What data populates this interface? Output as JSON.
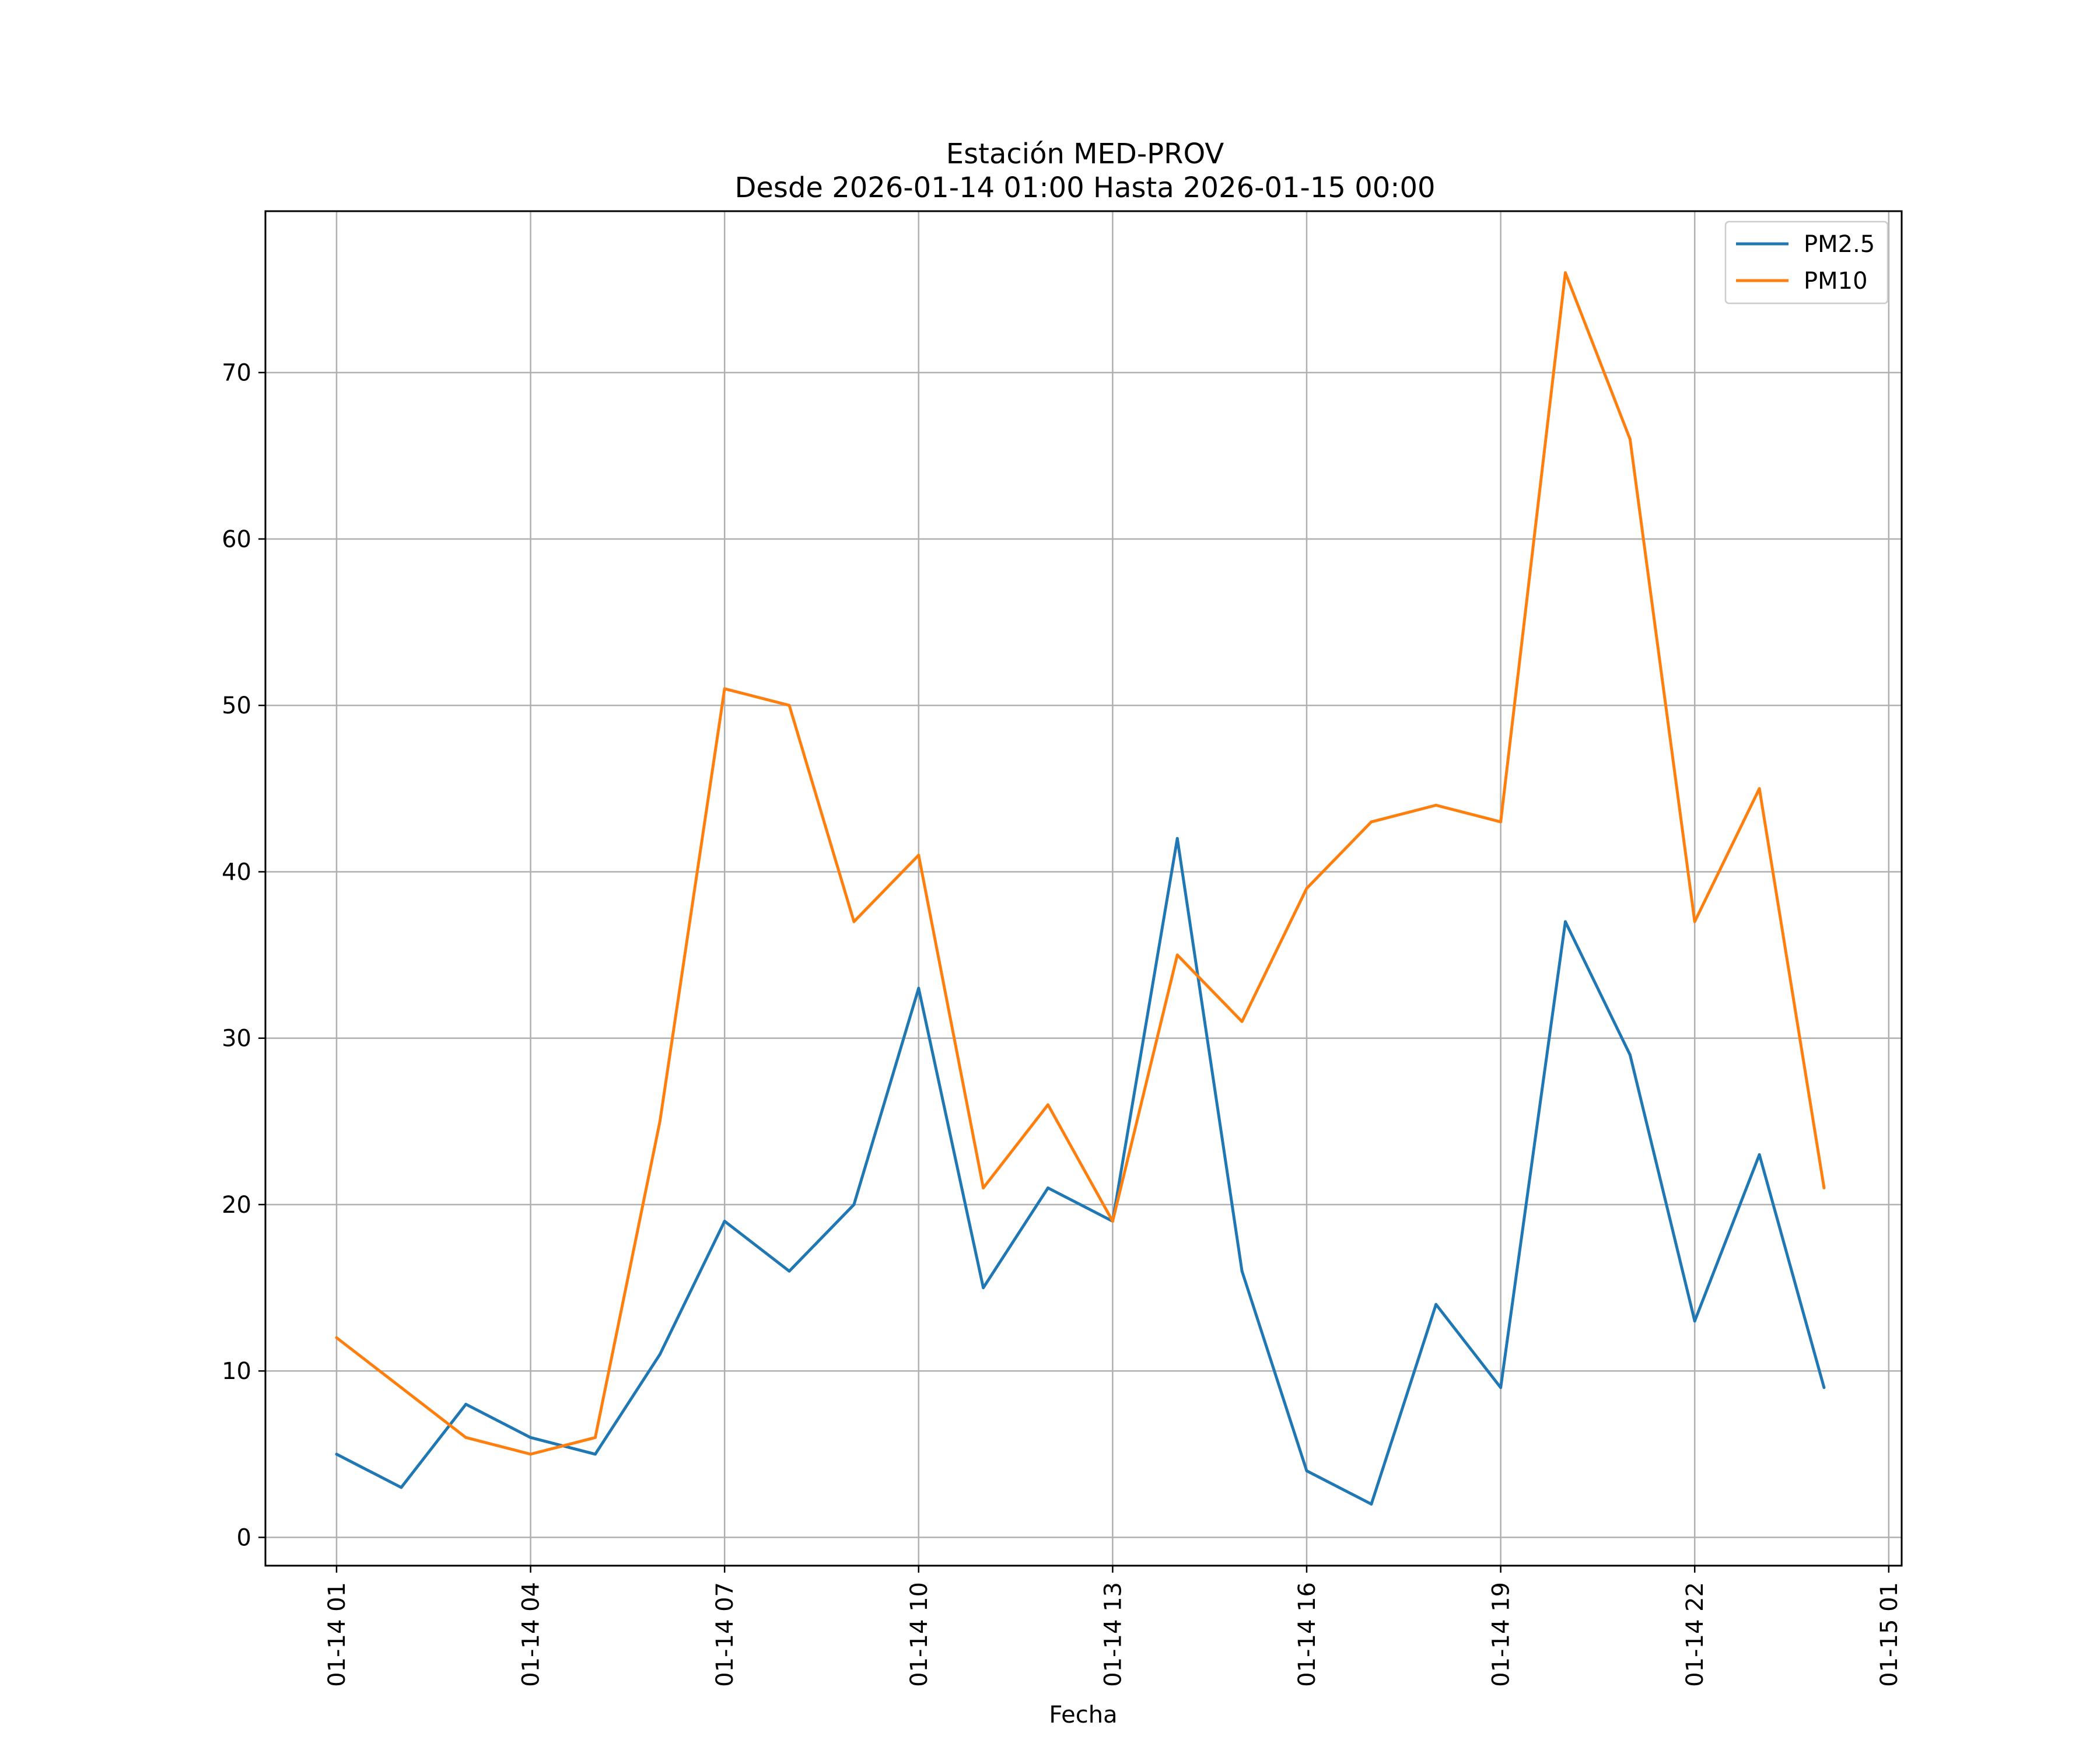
{
  "chart_data": {
    "type": "line",
    "title": "Estación MED-PROV",
    "subtitle": "Desde 2026-01-14 01:00 Hasta 2026-01-15 00:00",
    "xlabel": "Fecha",
    "ylabel": "",
    "x_hours": [
      1,
      2,
      3,
      4,
      5,
      6,
      7,
      8,
      9,
      10,
      11,
      12,
      13,
      14,
      15,
      16,
      17,
      18,
      19,
      20,
      21,
      22,
      23,
      24
    ],
    "xlim": [
      -0.1,
      25.2
    ],
    "ylim": [
      -1.7,
      79.7
    ],
    "x_ticks": [
      {
        "hour": 1,
        "label": "01-14 01"
      },
      {
        "hour": 4,
        "label": "01-14 04"
      },
      {
        "hour": 7,
        "label": "01-14 07"
      },
      {
        "hour": 10,
        "label": "01-14 10"
      },
      {
        "hour": 13,
        "label": "01-14 13"
      },
      {
        "hour": 16,
        "label": "01-14 16"
      },
      {
        "hour": 19,
        "label": "01-14 19"
      },
      {
        "hour": 22,
        "label": "01-14 22"
      },
      {
        "hour": 25,
        "label": "01-15 01"
      }
    ],
    "y_ticks": [
      0,
      10,
      20,
      30,
      40,
      50,
      60,
      70
    ],
    "grid": true,
    "legend_position": "top-right",
    "series": [
      {
        "name": "PM2.5",
        "color": "#1f77b4",
        "values": [
          5,
          3,
          8,
          6,
          5,
          11,
          19,
          16,
          20,
          33,
          15,
          21,
          19,
          42,
          16,
          4,
          2,
          14,
          9,
          37,
          29,
          13,
          23,
          9
        ]
      },
      {
        "name": "PM10",
        "color": "#ff7f0e",
        "values": [
          12,
          9,
          6,
          5,
          6,
          25,
          51,
          50,
          37,
          41,
          21,
          26,
          19,
          35,
          31,
          39,
          43,
          44,
          43,
          76,
          66,
          37,
          45,
          21
        ]
      }
    ]
  }
}
